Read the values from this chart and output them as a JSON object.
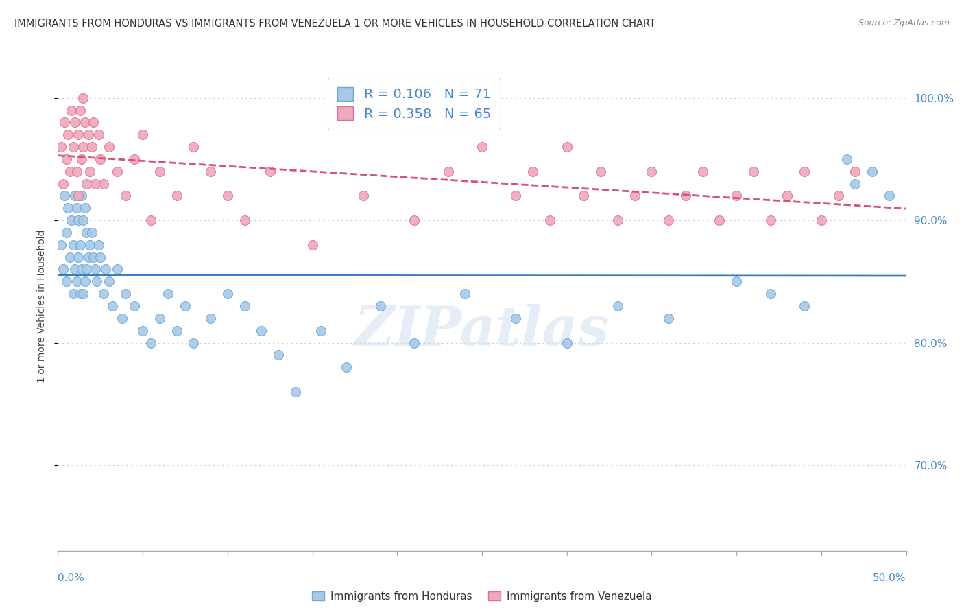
{
  "title": "IMMIGRANTS FROM HONDURAS VS IMMIGRANTS FROM VENEZUELA 1 OR MORE VEHICLES IN HOUSEHOLD CORRELATION CHART",
  "source": "Source: ZipAtlas.com",
  "ylabel": "1 or more Vehicles in Household",
  "xmin": 0.0,
  "xmax": 50.0,
  "ymin": 63.0,
  "ymax": 103.0,
  "yticks": [
    70.0,
    80.0,
    90.0,
    100.0
  ],
  "ytick_labels": [
    "70.0%",
    "80.0%",
    "90.0%",
    "100.0%"
  ],
  "watermark": "ZIPatlas",
  "honduras_color": "#a8c8e8",
  "honduras_edge_color": "#6aaad4",
  "honduras_line_color": "#3a7fbf",
  "venezuela_color": "#f0a8bc",
  "venezuela_edge_color": "#e07090",
  "venezuela_line_color": "#d95070",
  "background_color": "#ffffff",
  "grid_color": "#cccccc",
  "R_honduras": 0.106,
  "N_honduras": 71,
  "R_venezuela": 0.358,
  "N_venezuela": 65,
  "legend_text_color": "#4488cc",
  "title_color": "#333333",
  "source_color": "#888888",
  "axis_label_color": "#4488cc",
  "honduras_x": [
    0.2,
    0.3,
    0.4,
    0.5,
    0.5,
    0.6,
    0.7,
    0.8,
    0.9,
    0.9,
    1.0,
    1.0,
    1.1,
    1.1,
    1.2,
    1.2,
    1.3,
    1.3,
    1.4,
    1.4,
    1.5,
    1.5,
    1.6,
    1.6,
    1.7,
    1.7,
    1.8,
    1.9,
    2.0,
    2.1,
    2.2,
    2.3,
    2.4,
    2.5,
    2.7,
    2.8,
    3.0,
    3.2,
    3.5,
    3.8,
    4.0,
    4.5,
    5.0,
    5.5,
    6.0,
    6.5,
    7.0,
    7.5,
    8.0,
    9.0,
    10.0,
    11.0,
    12.0,
    13.0,
    14.0,
    15.5,
    17.0,
    19.0,
    21.0,
    24.0,
    27.0,
    30.0,
    33.0,
    36.0,
    40.0,
    42.0,
    44.0,
    46.5,
    47.0,
    48.0,
    49.0
  ],
  "honduras_y": [
    88.0,
    86.0,
    92.0,
    89.0,
    85.0,
    91.0,
    87.0,
    90.0,
    88.0,
    84.0,
    92.0,
    86.0,
    91.0,
    85.0,
    90.0,
    87.0,
    88.0,
    84.0,
    92.0,
    86.0,
    90.0,
    84.0,
    91.0,
    85.0,
    89.0,
    86.0,
    87.0,
    88.0,
    89.0,
    87.0,
    86.0,
    85.0,
    88.0,
    87.0,
    84.0,
    86.0,
    85.0,
    83.0,
    86.0,
    82.0,
    84.0,
    83.0,
    81.0,
    80.0,
    82.0,
    84.0,
    81.0,
    83.0,
    80.0,
    82.0,
    84.0,
    83.0,
    81.0,
    79.0,
    76.0,
    81.0,
    78.0,
    83.0,
    80.0,
    84.0,
    82.0,
    80.0,
    83.0,
    82.0,
    85.0,
    84.0,
    83.0,
    95.0,
    93.0,
    94.0,
    92.0
  ],
  "venezuela_x": [
    0.2,
    0.3,
    0.4,
    0.5,
    0.6,
    0.7,
    0.8,
    0.9,
    1.0,
    1.1,
    1.2,
    1.2,
    1.3,
    1.4,
    1.5,
    1.5,
    1.6,
    1.7,
    1.8,
    1.9,
    2.0,
    2.1,
    2.2,
    2.4,
    2.5,
    2.7,
    3.0,
    3.5,
    4.0,
    4.5,
    5.0,
    5.5,
    6.0,
    7.0,
    8.0,
    9.0,
    10.0,
    11.0,
    12.5,
    15.0,
    18.0,
    21.0,
    23.0,
    25.0,
    27.0,
    28.0,
    29.0,
    30.0,
    31.0,
    32.0,
    33.0,
    34.0,
    35.0,
    36.0,
    37.0,
    38.0,
    39.0,
    40.0,
    41.0,
    42.0,
    43.0,
    44.0,
    45.0,
    46.0,
    47.0
  ],
  "venezuela_y": [
    96.0,
    93.0,
    98.0,
    95.0,
    97.0,
    94.0,
    99.0,
    96.0,
    98.0,
    94.0,
    97.0,
    92.0,
    99.0,
    95.0,
    100.0,
    96.0,
    98.0,
    93.0,
    97.0,
    94.0,
    96.0,
    98.0,
    93.0,
    97.0,
    95.0,
    93.0,
    96.0,
    94.0,
    92.0,
    95.0,
    97.0,
    90.0,
    94.0,
    92.0,
    96.0,
    94.0,
    92.0,
    90.0,
    94.0,
    88.0,
    92.0,
    90.0,
    94.0,
    96.0,
    92.0,
    94.0,
    90.0,
    96.0,
    92.0,
    94.0,
    90.0,
    92.0,
    94.0,
    90.0,
    92.0,
    94.0,
    90.0,
    92.0,
    94.0,
    90.0,
    92.0,
    94.0,
    90.0,
    92.0,
    94.0
  ]
}
